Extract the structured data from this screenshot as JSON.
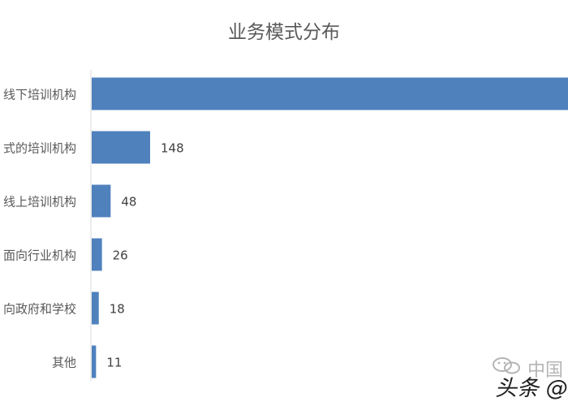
{
  "chart_data": {
    "type": "bar",
    "orientation": "horizontal",
    "title": "业务模式分布",
    "categories": [
      "线下培训机构",
      "式的培训机构",
      "线上培训机构",
      "面向行业机构",
      "向政府和学校",
      "其他"
    ],
    "values": [
      null,
      148,
      48,
      26,
      18,
      11
    ],
    "data_labels": [
      "",
      "148",
      "48",
      "26",
      "18",
      "11"
    ],
    "xlabel": "",
    "ylabel": "",
    "grid": false,
    "legend": "none",
    "bar_color": "#4f81bd"
  },
  "watermark": {
    "line1": "中国",
    "line2": "头条 @万"
  }
}
